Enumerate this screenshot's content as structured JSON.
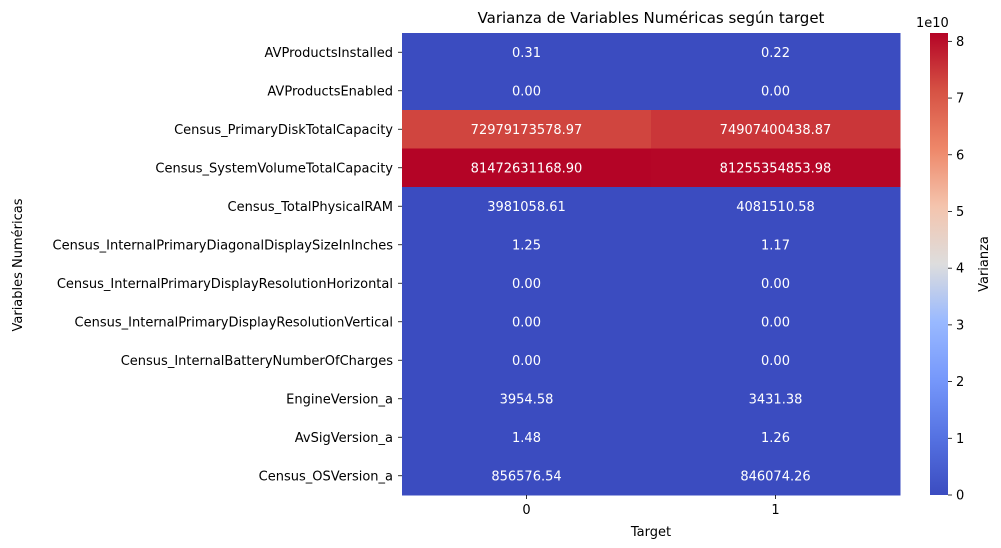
{
  "chart_data": {
    "type": "heatmap",
    "title": "Varianza de Variables Numéricas según target",
    "xlabel": "Target",
    "ylabel": "Variables Numéricas",
    "x_categories": [
      "0",
      "1"
    ],
    "y_categories": [
      "AVProductsInstalled",
      "AVProductsEnabled",
      "Census_PrimaryDiskTotalCapacity",
      "Census_SystemVolumeTotalCapacity",
      "Census_TotalPhysicalRAM",
      "Census_InternalPrimaryDiagonalDisplaySizeInInches",
      "Census_InternalPrimaryDisplayResolutionHorizontal",
      "Census_InternalPrimaryDisplayResolutionVertical",
      "Census_InternalBatteryNumberOfCharges",
      "EngineVersion_a",
      "AvSigVersion_a",
      "Census_OSVersion_a"
    ],
    "values": [
      [
        0.31,
        0.22
      ],
      [
        0.0,
        0.0
      ],
      [
        72979173578.97,
        74907400438.87
      ],
      [
        81472631168.9,
        81255354853.98
      ],
      [
        3981058.61,
        4081510.58
      ],
      [
        1.25,
        1.17
      ],
      [
        0.0,
        0.0
      ],
      [
        0.0,
        0.0
      ],
      [
        0.0,
        0.0
      ],
      [
        3954.58,
        3431.38
      ],
      [
        1.48,
        1.26
      ],
      [
        856576.54,
        846074.26
      ]
    ],
    "cell_labels": [
      [
        "0.31",
        "0.22"
      ],
      [
        "0.00",
        "0.00"
      ],
      [
        "72979173578.97",
        "74907400438.87"
      ],
      [
        "81472631168.90",
        "81255354853.98"
      ],
      [
        "3981058.61",
        "4081510.58"
      ],
      [
        "1.25",
        "1.17"
      ],
      [
        "0.00",
        "0.00"
      ],
      [
        "0.00",
        "0.00"
      ],
      [
        "0.00",
        "0.00"
      ],
      [
        "3954.58",
        "3431.38"
      ],
      [
        "1.48",
        "1.26"
      ],
      [
        "856576.54",
        "846074.26"
      ]
    ],
    "colorbar": {
      "label": "Varianza",
      "scale_label": "1e10",
      "range": [
        0,
        81472631168.9
      ],
      "ticks": [
        0,
        1,
        2,
        3,
        4,
        5,
        6,
        7,
        8
      ],
      "tick_multiplier": 10000000000,
      "colormap": "coolwarm"
    },
    "grid": false
  }
}
